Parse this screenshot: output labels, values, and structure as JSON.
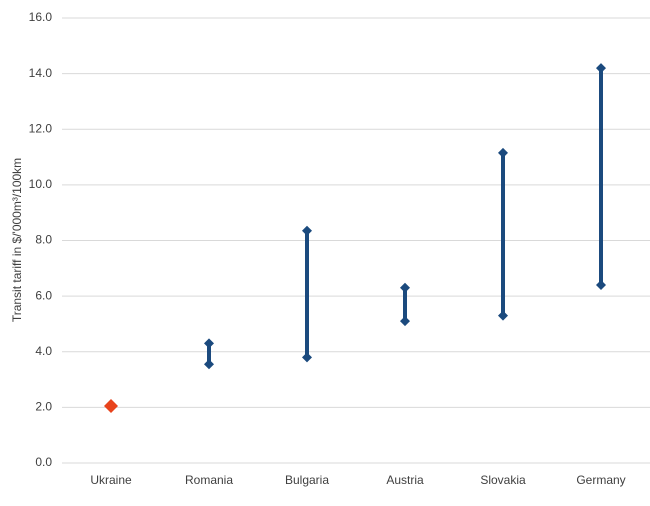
{
  "chart_data": {
    "type": "range",
    "y_label": "Transit tariff in $/'000m³/100km",
    "categories": [
      "Ukraine",
      "Romania",
      "Bulgaria",
      "Austria",
      "Slovakia",
      "Germany"
    ],
    "low": [
      2.05,
      3.55,
      3.8,
      5.1,
      5.3,
      6.4
    ],
    "high": [
      null,
      4.3,
      8.35,
      6.3,
      11.15,
      14.2
    ],
    "colors": [
      "#e8431c",
      "#1b4a7e",
      "#1b4a7e",
      "#1b4a7e",
      "#1b4a7e",
      "#1b4a7e"
    ],
    "ylim": [
      0,
      16
    ],
    "yticks": [
      {
        "value": 0,
        "label": "0.0"
      },
      {
        "value": 2,
        "label": "2.0"
      },
      {
        "value": 4,
        "label": "4.0"
      },
      {
        "value": 6,
        "label": "6.0"
      },
      {
        "value": 8,
        "label": "8.0"
      },
      {
        "value": 10,
        "label": "10.0"
      },
      {
        "value": 12,
        "label": "12.0"
      },
      {
        "value": 14,
        "label": "14.0"
      },
      {
        "value": 16,
        "label": "16.0"
      }
    ],
    "grid": true
  }
}
